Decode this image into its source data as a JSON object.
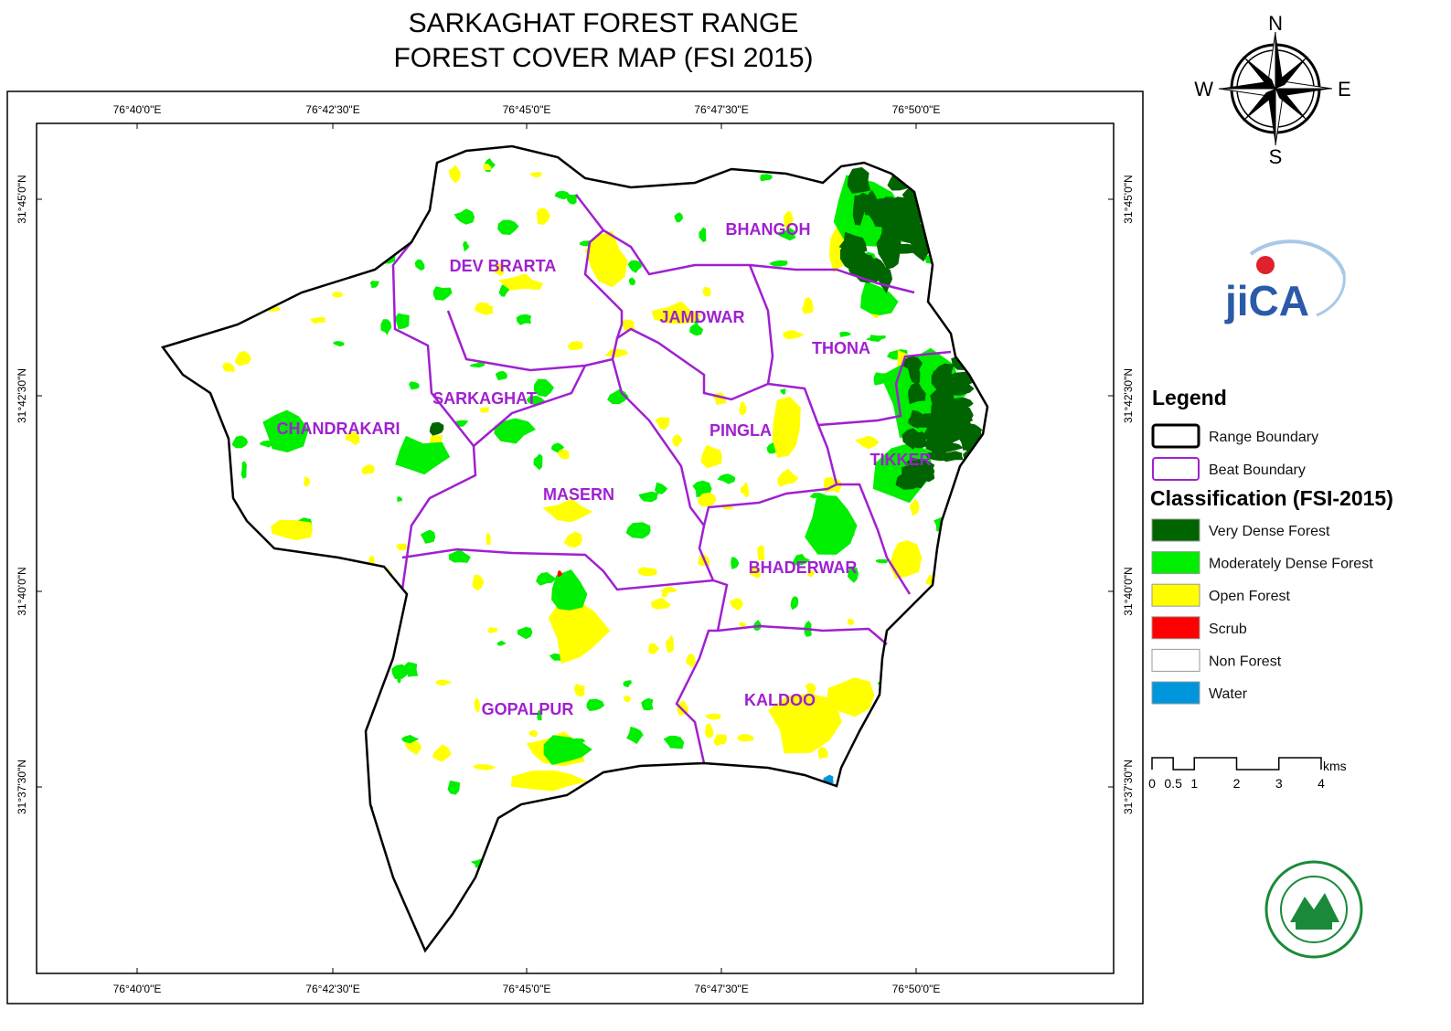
{
  "title": [
    "SARKAGHAT FOREST RANGE",
    "FOREST COVER MAP (FSI 2015)"
  ],
  "compass": {
    "n": "N",
    "e": "E",
    "s": "S",
    "w": "W"
  },
  "graticule": {
    "longitude": [
      "76°40'0\"E",
      "76°42'30\"E",
      "76°45'0\"E",
      "76°47'30\"E",
      "76°50'0\"E"
    ],
    "latitude": [
      "31°45'0\"N",
      "31°42'30\"N",
      "31°40'0\"N",
      "31°37'30\"N"
    ]
  },
  "beats": [
    "BHANGOH",
    "DEV BRARTA",
    "JAMDWAR",
    "THONA",
    "SARKAGHAT",
    "CHANDRAKARI",
    "PINGLA",
    "TIKKER",
    "MASERN",
    "BHADERWAR",
    "GOPALPUR",
    "KALDOO"
  ],
  "legend": {
    "title": "Legend",
    "boundaries": [
      {
        "label": "Range Boundary",
        "color": "#000000"
      },
      {
        "label": "Beat Boundary",
        "color": "#a020d0"
      }
    ],
    "classification_title": "Classification (FSI-2015)",
    "classes": [
      {
        "label": "Very Dense Forest",
        "color": "#006400"
      },
      {
        "label": "Moderately Dense Forest",
        "color": "#00ee00"
      },
      {
        "label": "Open Forest",
        "color": "#ffff00"
      },
      {
        "label": "Scrub",
        "color": "#ff0000"
      },
      {
        "label": "Non Forest",
        "color": "#ffffff"
      },
      {
        "label": "Water",
        "color": "#0096dc"
      }
    ]
  },
  "scale_bar": {
    "unit": "kms",
    "ticks": [
      0,
      0.5,
      1,
      2,
      3,
      4
    ]
  },
  "logo": "jiCA"
}
